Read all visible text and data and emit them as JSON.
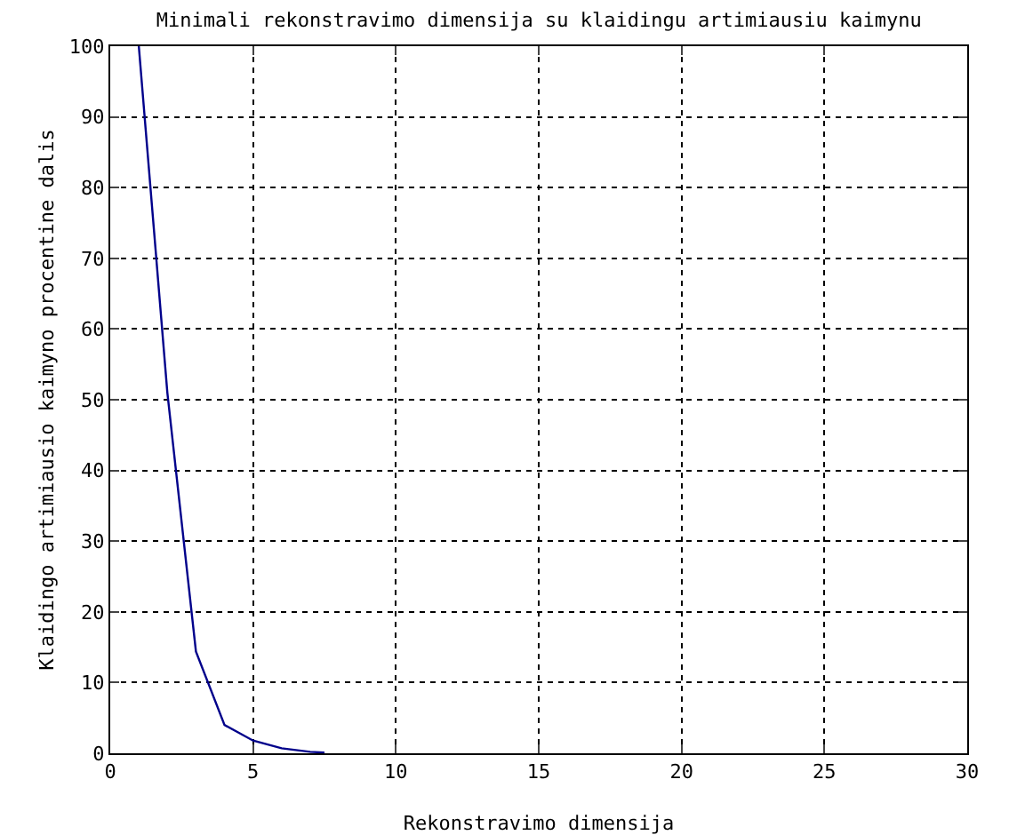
{
  "chart_data": {
    "type": "line",
    "title": "Minimali rekonstravimo dimensija su klaidingu artimiausiu kaimynu",
    "xlabel": "Rekonstravimo dimensija",
    "ylabel": "Klaidingo artimiausio kaimyno procentine dalis",
    "x": [
      1,
      2,
      3,
      4,
      5,
      6,
      7,
      7.5
    ],
    "series": [
      {
        "color": "#00008b",
        "values": [
          100,
          51,
          14.4,
          4,
          1.8,
          0.7,
          0.2,
          0.1
        ]
      }
    ],
    "xlim": [
      0,
      30
    ],
    "xticks": [
      0,
      5,
      10,
      15,
      20,
      25,
      30
    ],
    "ylim": [
      0,
      100
    ],
    "yticks": [
      0,
      10,
      20,
      30,
      40,
      50,
      60,
      70,
      80,
      90,
      100
    ],
    "grid": true,
    "marker": "none",
    "line_style": "solid"
  }
}
